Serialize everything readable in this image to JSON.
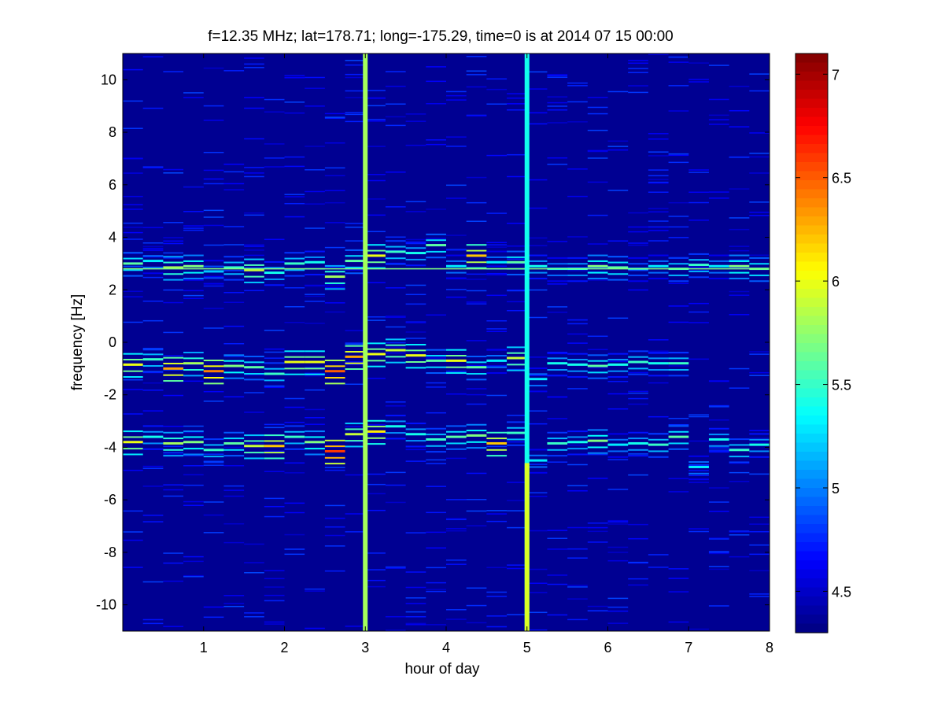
{
  "chart_data": {
    "type": "heatmap",
    "title": "f=12.35 MHz;  lat=178.71; long=-175.29, time=0 is at 2014 07 15 00:00",
    "xlabel": "hour of day",
    "ylabel": "frequency [Hz]",
    "xlim": [
      0,
      8
    ],
    "ylim": [
      -11,
      11
    ],
    "background_value": 4.35,
    "x_ticks": [
      1,
      2,
      3,
      4,
      5,
      6,
      7,
      8
    ],
    "y_ticks": [
      10,
      8,
      6,
      4,
      2,
      0,
      -2,
      -4,
      -6,
      -8,
      -10
    ],
    "colorbar": {
      "colormap": "jet",
      "range": [
        4.3,
        7.1
      ],
      "ticks": [
        7,
        6.5,
        6,
        5.5,
        5,
        4.5
      ]
    },
    "segment_width_hours": 0.25,
    "segment_starts_hours": [
      0,
      0.25,
      0.5,
      0.75,
      1.0,
      1.25,
      1.5,
      1.75,
      2.0,
      2.25,
      2.5,
      2.75,
      3.0,
      3.25,
      3.5,
      3.75,
      4.0,
      4.25,
      4.5,
      4.75,
      5.0,
      5.25,
      5.5,
      5.75,
      6.0,
      6.25,
      6.5,
      6.75,
      7.0,
      7.25,
      7.5,
      7.75
    ],
    "bands": [
      {
        "name": "upper",
        "frequency_hz": [
          3.0,
          3.1,
          2.85,
          2.9,
          2.7,
          2.85,
          2.75,
          2.65,
          3.0,
          3.05,
          2.5,
          3.1,
          3.3,
          3.45,
          3.4,
          3.7,
          2.9,
          3.3,
          3.05,
          3.05,
          2.9,
          2.8,
          2.8,
          2.9,
          2.85,
          2.8,
          2.9,
          2.8,
          2.95,
          2.9,
          2.9,
          2.8
        ],
        "intensity": [
          5.6,
          5.3,
          5.8,
          5.7,
          5.2,
          5.5,
          5.9,
          5.4,
          5.5,
          5.4,
          5.8,
          5.6,
          6.0,
          5.5,
          5.4,
          5.6,
          5.3,
          6.2,
          5.3,
          5.6,
          5.4,
          5.3,
          5.4,
          5.7,
          5.6,
          5.2,
          5.3,
          5.5,
          5.5,
          5.3,
          5.7,
          5.6
        ]
      },
      {
        "name": "middle",
        "frequency_hz": [
          -0.85,
          -0.65,
          -1.0,
          -0.8,
          -1.1,
          -0.9,
          -0.95,
          -1.2,
          -0.75,
          -0.75,
          -1.1,
          -0.55,
          -0.45,
          -0.3,
          -0.5,
          -0.7,
          -0.7,
          -0.95,
          -0.7,
          -0.6,
          -1.4,
          -0.8,
          -0.85,
          -0.9,
          -0.85,
          -0.75,
          -0.8,
          -0.8,
          -0.8,
          -0.8,
          -0.8,
          -0.6
        ],
        "intensity": [
          6.0,
          5.5,
          6.3,
          5.8,
          6.4,
          5.7,
          5.6,
          5.5,
          6.0,
          6.0,
          6.5,
          6.3,
          6.0,
          5.9,
          6.0,
          5.6,
          6.0,
          5.6,
          5.3,
          5.9,
          5.3,
          5.4,
          5.4,
          5.6,
          5.4,
          5.5,
          5.4,
          5.5,
          5.2,
          5.2,
          5.2,
          5.2
        ],
        "active_until_hours": 7.0
      },
      {
        "name": "lower",
        "frequency_hz": [
          -3.8,
          -3.6,
          -3.85,
          -3.8,
          -4.1,
          -3.85,
          -3.95,
          -3.95,
          -3.6,
          -3.8,
          -4.15,
          -3.5,
          -3.4,
          -3.2,
          -3.5,
          -3.7,
          -3.6,
          -3.55,
          -3.85,
          -3.45,
          -4.5,
          -3.85,
          -3.8,
          -3.75,
          -3.9,
          -3.85,
          -3.9,
          -3.6,
          -4.75,
          -3.7,
          -4.1,
          -3.9
        ],
        "intensity": [
          6.0,
          5.4,
          5.8,
          5.7,
          5.5,
          5.6,
          5.9,
          6.2,
          5.5,
          5.7,
          6.6,
          5.9,
          6.1,
          5.4,
          5.4,
          5.5,
          5.6,
          5.7,
          6.2,
          5.5,
          5.3,
          5.5,
          5.4,
          5.7,
          5.3,
          5.4,
          5.5,
          5.6,
          5.3,
          5.4,
          5.5,
          5.4
        ]
      }
    ],
    "steady_line": {
      "frequency_hz": 2.8,
      "intensity": 5.7
    },
    "broadband_columns": [
      {
        "hour": 3.0,
        "intensity": 5.8
      },
      {
        "hour": 5.0,
        "intensity": 5.4,
        "lower_intensity": 5.95
      }
    ]
  }
}
